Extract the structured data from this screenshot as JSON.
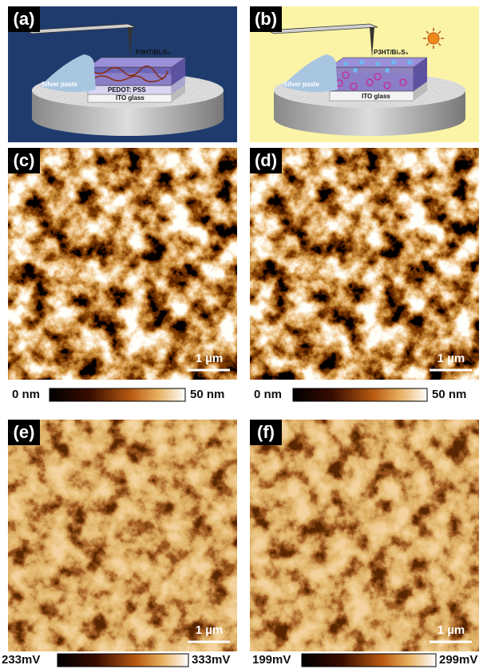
{
  "panels": [
    {
      "label": "(a)",
      "texts": [
        "P3HT/Bi₂S₃",
        "PEDOT: PSS",
        "Silver paste",
        "ITO glass"
      ]
    },
    {
      "label": "(b)",
      "texts": [
        "P3HT/Bi₂S₃",
        "Silver paste",
        "ITO glass"
      ]
    },
    {
      "label": "(c)",
      "scale_bar": "1 µm"
    },
    {
      "label": "(d)",
      "scale_bar": "1 µm"
    },
    {
      "label": "(e)",
      "scale_bar": "1 µm"
    },
    {
      "label": "(f)",
      "scale_bar": "1 µm"
    }
  ],
  "colorbars": [
    {
      "min_label": "0 nm",
      "max_label": "50 nm"
    },
    {
      "min_label": "0 nm",
      "max_label": "50 nm"
    },
    {
      "min_label": "233mV",
      "max_label": "333mV"
    },
    {
      "min_label": "199mV",
      "max_label": "299mV"
    }
  ]
}
